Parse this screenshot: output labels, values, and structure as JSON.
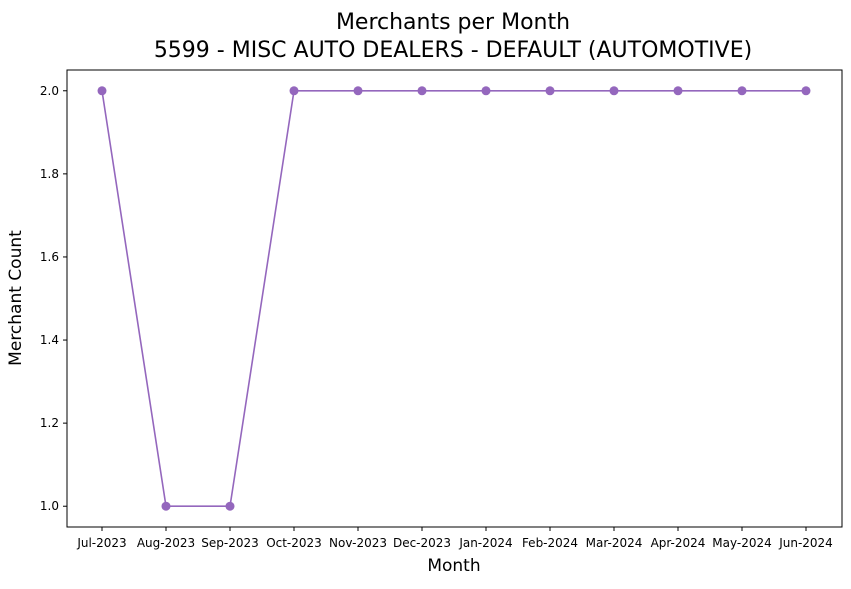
{
  "chart_data": {
    "type": "line",
    "title": "Merchants per Month",
    "subtitle": "5599 - MISC AUTO DEALERS - DEFAULT (AUTOMOTIVE)",
    "xlabel": "Month",
    "ylabel": "Merchant Count",
    "categories": [
      "Jul-2023",
      "Aug-2023",
      "Sep-2023",
      "Oct-2023",
      "Nov-2023",
      "Dec-2023",
      "Jan-2024",
      "Feb-2024",
      "Mar-2024",
      "Apr-2024",
      "May-2024",
      "Jun-2024"
    ],
    "series": [
      {
        "values": [
          2,
          1,
          1,
          2,
          2,
          2,
          2,
          2,
          2,
          2,
          2,
          2
        ],
        "color": "#9467bd",
        "marker": "circle"
      }
    ],
    "ylim": [
      0.95,
      2.05
    ],
    "yticks": [
      "1.0",
      "1.2",
      "1.4",
      "1.6",
      "1.8",
      "2.0"
    ],
    "grid": false,
    "legend": "none"
  }
}
